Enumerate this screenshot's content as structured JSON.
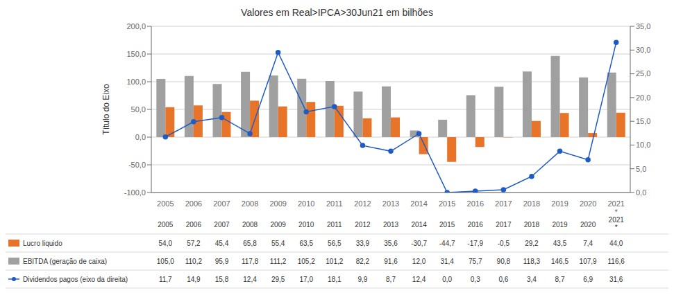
{
  "chart_data": {
    "type": "bar",
    "title": "Valores em Real>IPCA>30Jun21 em bilhões",
    "y_label": "Título do Eixo",
    "categories": [
      "2005",
      "2006",
      "2007",
      "2008",
      "2009",
      "2010",
      "2011",
      "2012",
      "2013",
      "2014",
      "2015",
      "2016",
      "2017",
      "2018",
      "2019",
      "2020",
      "2021\n*"
    ],
    "series": [
      {
        "name": "EBITDA (geração de caixa)",
        "type": "bar",
        "color": "#A0A0A0",
        "values": [
          105.0,
          110.2,
          95.9,
          117.8,
          111.2,
          105.2,
          101.2,
          82.2,
          91.6,
          12.0,
          31.4,
          75.7,
          90.8,
          118.3,
          146.5,
          107.9,
          116.6
        ],
        "value_labels": [
          "105,0",
          "110,2",
          "95,9",
          "117,8",
          "111,2",
          "105,2",
          "101,2",
          "82,2",
          "91,6",
          "12,0",
          "31,4",
          "75,7",
          "90,8",
          "118,3",
          "146,5",
          "107,9",
          "116,6"
        ]
      },
      {
        "name": "Lucro liquido",
        "type": "bar",
        "color": "#E8742A",
        "values": [
          54.0,
          57.2,
          45.4,
          65.8,
          55.4,
          63.5,
          56.5,
          33.9,
          35.6,
          -30.7,
          -44.7,
          -17.9,
          -0.5,
          29.2,
          43.5,
          7.4,
          44.0
        ],
        "value_labels": [
          "54,0",
          "57,2",
          "45,4",
          "65,8",
          "55,4",
          "63,5",
          "56,5",
          "33,9",
          "35,6",
          "-30,7",
          "-44,7",
          "-17,9",
          "-0,5",
          "29,2",
          "43,5",
          "7,4",
          "44,0"
        ]
      },
      {
        "name": "Dividendos pagos (eixo da direita)",
        "type": "line",
        "axis": "y2",
        "marker": "circle",
        "color": "#1F5BC4",
        "values": [
          11.7,
          14.9,
          15.8,
          12.4,
          29.5,
          17.0,
          18.1,
          9.9,
          8.7,
          12.4,
          0.0,
          0.3,
          0.6,
          3.4,
          8.7,
          6.9,
          31.6
        ],
        "value_labels": [
          "11,7",
          "14,9",
          "15,8",
          "12,4",
          "29,5",
          "17,0",
          "18,1",
          "9,9",
          "8,7",
          "12,4",
          "0,0",
          "0,3",
          "0,6",
          "3,4",
          "8,7",
          "6,9",
          "31,6"
        ]
      }
    ],
    "ylim": [
      -100.0,
      200.0
    ],
    "yticks": [
      {
        "value": -100.0,
        "label": "-100,0"
      },
      {
        "value": -50.0,
        "label": "-50,0"
      },
      {
        "value": 0.0,
        "label": "0,0"
      },
      {
        "value": 50.0,
        "label": "50,0"
      },
      {
        "value": 100.0,
        "label": "100,0"
      },
      {
        "value": 150.0,
        "label": "150,0"
      },
      {
        "value": 200.0,
        "label": "200,0"
      }
    ],
    "y2lim": [
      0.0,
      35.0
    ],
    "y2ticks": [
      {
        "value": 0.0,
        "label": "0,0"
      },
      {
        "value": 5.0,
        "label": "5,0"
      },
      {
        "value": 10.0,
        "label": "10,0"
      },
      {
        "value": 15.0,
        "label": "15,0"
      },
      {
        "value": 20.0,
        "label": "20,0"
      },
      {
        "value": 25.0,
        "label": "25,0"
      },
      {
        "value": 30.0,
        "label": "30,0"
      },
      {
        "value": 35.0,
        "label": "35,0"
      }
    ],
    "grid": true,
    "legend": "bottom"
  }
}
